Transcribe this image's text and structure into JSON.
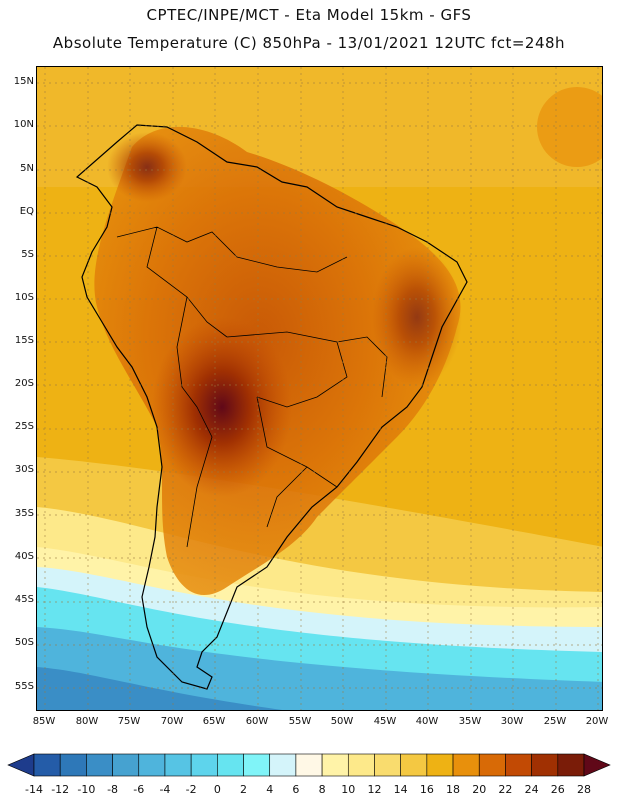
{
  "header": {
    "line1": "CPTEC/INPE/MCT -  Eta Model 15km - GFS",
    "line2": "Absolute Temperature (C) 850hPa - 13/01/2021 12UTC fct=248h"
  },
  "map": {
    "lat_labels": [
      "15N",
      "10N",
      "5N",
      "EQ",
      "5S",
      "10S",
      "15S",
      "20S",
      "25S",
      "30S",
      "35S",
      "40S",
      "45S",
      "50S",
      "55S"
    ],
    "lon_labels": [
      "85W",
      "80W",
      "75W",
      "70W",
      "65W",
      "60W",
      "55W",
      "50W",
      "45W",
      "40W",
      "35W",
      "30W",
      "25W",
      "20W"
    ],
    "region": "South America",
    "variable": "Absolute Temperature (C) 850hPa"
  },
  "colorbar": {
    "ticks": [
      "-14",
      "-12",
      "-10",
      "-8",
      "-6",
      "-4",
      "-2",
      "0",
      "2",
      "4",
      "6",
      "8",
      "10",
      "12",
      "14",
      "16",
      "18",
      "20",
      "22",
      "24",
      "26",
      "28"
    ],
    "colors": [
      "#1e3c8c",
      "#245ca8",
      "#2e78b8",
      "#3a8ec6",
      "#46a2d0",
      "#4fb4dc",
      "#56c4e4",
      "#5ed4ec",
      "#66e4f0",
      "#80f4f8",
      "#d4f4fa",
      "#fff8e6",
      "#fff3a8",
      "#fde98a",
      "#f9dc6e",
      "#f4c842",
      "#eeb214",
      "#e8900c",
      "#d86a06",
      "#c24a04",
      "#a03002",
      "#7a1c08",
      "#600818"
    ]
  }
}
